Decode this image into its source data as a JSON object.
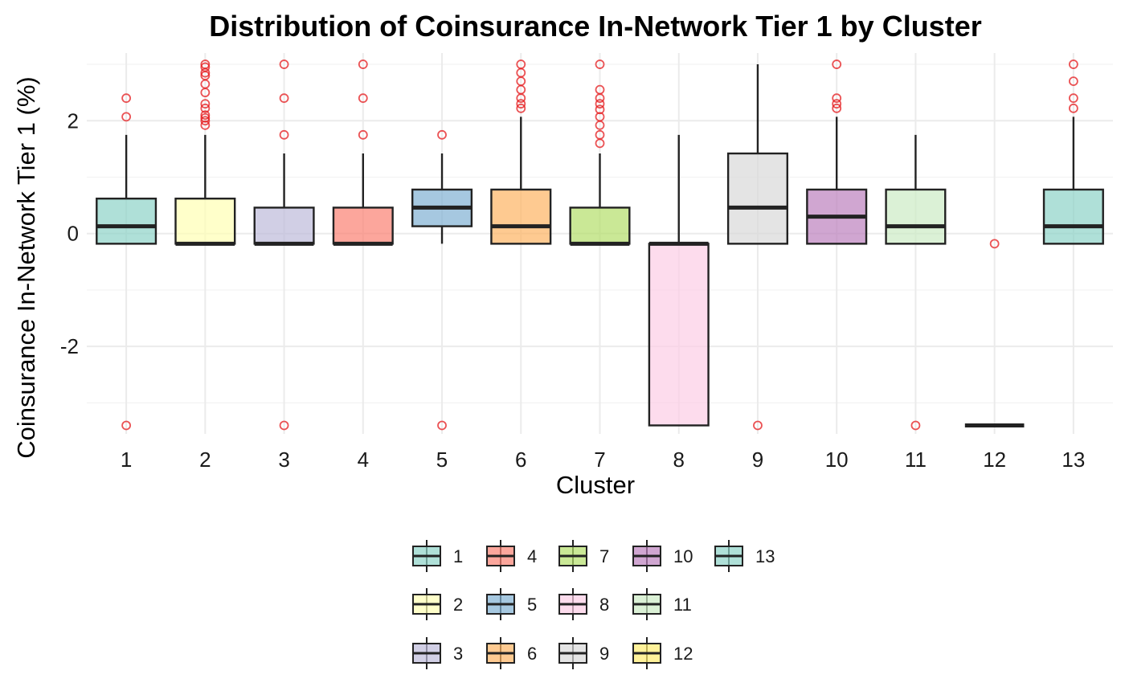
{
  "chart_data": {
    "type": "boxplot",
    "title": "Distribution of Coinsurance In-Network Tier 1 by Cluster",
    "xlabel": "Cluster",
    "ylabel": "Coinsurance In-Network Tier 1 (%)",
    "ylim": [
      -3.55,
      3.2
    ],
    "yticks": [
      -2,
      0,
      2
    ],
    "grid": true,
    "legend_position": "bottom",
    "outlier_color": "#E41A1C",
    "categories": [
      "1",
      "2",
      "3",
      "4",
      "5",
      "6",
      "7",
      "8",
      "9",
      "10",
      "11",
      "12",
      "13"
    ],
    "boxes": [
      {
        "name": "1",
        "color": "#8DD3C7",
        "q1": -0.18,
        "median": 0.13,
        "q3": 0.62,
        "whisker_low": -0.18,
        "whisker_high": 1.75,
        "outliers": [
          2.4,
          2.07,
          -3.4
        ]
      },
      {
        "name": "2",
        "color": "#FFFFB3",
        "q1": -0.18,
        "median": -0.18,
        "q3": 0.62,
        "whisker_low": -0.18,
        "whisker_high": 1.75,
        "outliers": [
          3.0,
          2.95,
          2.85,
          2.8,
          2.65,
          2.5,
          2.3,
          2.22,
          2.1,
          2.05,
          2.0,
          1.92
        ]
      },
      {
        "name": "3",
        "color": "#BEBADA",
        "q1": -0.18,
        "median": -0.18,
        "q3": 0.46,
        "whisker_low": -0.18,
        "whisker_high": 1.42,
        "outliers": [
          3.0,
          2.4,
          1.75,
          -3.4
        ]
      },
      {
        "name": "4",
        "color": "#FB8072",
        "q1": -0.18,
        "median": -0.18,
        "q3": 0.46,
        "whisker_low": -0.18,
        "whisker_high": 1.42,
        "outliers": [
          3.0,
          2.4,
          1.75
        ]
      },
      {
        "name": "5",
        "color": "#80B1D3",
        "q1": 0.13,
        "median": 0.46,
        "q3": 0.78,
        "whisker_low": -0.18,
        "whisker_high": 1.42,
        "outliers": [
          1.75,
          -3.4
        ]
      },
      {
        "name": "6",
        "color": "#FDB462",
        "q1": -0.18,
        "median": 0.13,
        "q3": 0.78,
        "whisker_low": -0.18,
        "whisker_high": 2.07,
        "outliers": [
          3.0,
          2.85,
          2.7,
          2.55,
          2.4,
          2.3,
          2.22
        ]
      },
      {
        "name": "7",
        "color": "#B3DE69",
        "q1": -0.18,
        "median": -0.18,
        "q3": 0.46,
        "whisker_low": -0.18,
        "whisker_high": 1.42,
        "outliers": [
          3.0,
          2.55,
          2.4,
          2.3,
          2.2,
          2.07,
          1.92,
          1.75,
          1.6
        ]
      },
      {
        "name": "8",
        "color": "#FCCDE5",
        "q1": -3.4,
        "median": -0.18,
        "q3": -0.18,
        "whisker_low": -3.4,
        "whisker_high": 1.75,
        "outliers": []
      },
      {
        "name": "9",
        "color": "#D9D9D9",
        "q1": -0.18,
        "median": 0.46,
        "q3": 1.42,
        "whisker_low": -0.18,
        "whisker_high": 3.0,
        "outliers": [
          -3.4
        ]
      },
      {
        "name": "10",
        "color": "#BC80BD",
        "q1": -0.18,
        "median": 0.3,
        "q3": 0.78,
        "whisker_low": -0.18,
        "whisker_high": 2.07,
        "outliers": [
          3.0,
          2.4,
          2.3,
          2.22
        ]
      },
      {
        "name": "11",
        "color": "#CCEBC5",
        "q1": -0.18,
        "median": 0.13,
        "q3": 0.78,
        "whisker_low": -0.18,
        "whisker_high": 1.75,
        "outliers": [
          -3.4
        ]
      },
      {
        "name": "12",
        "color": "#FFED6F",
        "q1": -3.4,
        "median": -3.4,
        "q3": -3.4,
        "whisker_low": -3.4,
        "whisker_high": -3.4,
        "outliers": [
          -0.18
        ]
      },
      {
        "name": "13",
        "color": "#8DD3C7",
        "q1": -0.18,
        "median": 0.13,
        "q3": 0.78,
        "whisker_low": -0.18,
        "whisker_high": 2.07,
        "outliers": [
          3.0,
          2.7,
          2.4,
          2.22
        ]
      }
    ],
    "legend": {
      "title": "",
      "entries": [
        "1",
        "2",
        "3",
        "4",
        "5",
        "6",
        "7",
        "8",
        "9",
        "10",
        "11",
        "12",
        "13"
      ]
    }
  }
}
